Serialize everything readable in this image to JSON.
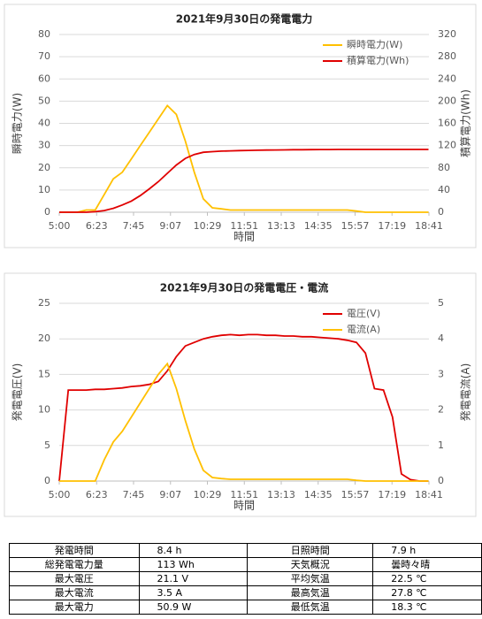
{
  "chart_data": [
    {
      "type": "line",
      "title": "2021年9月30日の発電電力",
      "xlabel": "時間",
      "ylabel": "瞬時電力(W)",
      "y2label": "積算電力(Wh)",
      "x": [
        "5:00",
        "5:20",
        "5:40",
        "6:00",
        "6:20",
        "6:40",
        "7:00",
        "7:20",
        "7:40",
        "8:00",
        "8:20",
        "8:40",
        "9:00",
        "9:20",
        "9:40",
        "10:00",
        "10:20",
        "10:40",
        "11:00",
        "11:20",
        "11:40",
        "12:00",
        "12:20",
        "12:40",
        "13:00",
        "13:20",
        "13:40",
        "14:00",
        "14:20",
        "14:40",
        "15:00",
        "15:20",
        "15:40",
        "16:00",
        "16:20",
        "16:40",
        "17:00",
        "17:20",
        "17:40",
        "18:00",
        "18:20",
        "18:40"
      ],
      "xlim": [
        "5:00",
        "18:41"
      ],
      "xticks": [
        "5:00",
        "6:23",
        "7:45",
        "9:07",
        "10:29",
        "11:51",
        "13:13",
        "14:35",
        "15:57",
        "17:19",
        "18:41"
      ],
      "ylim": [
        0,
        80
      ],
      "yticks": [
        0,
        10,
        20,
        30,
        40,
        50,
        60,
        70,
        80
      ],
      "y2lim": [
        0,
        320
      ],
      "y2ticks": [
        0,
        40,
        80,
        120,
        160,
        200,
        240,
        280,
        320
      ],
      "grid": true,
      "legend": "upper right",
      "series": [
        {
          "name": "瞬時電力(W)",
          "color": "#ffc000",
          "values": [
            0,
            0,
            0,
            1,
            1,
            8,
            15,
            18,
            24,
            30,
            36,
            42,
            48,
            44,
            32,
            18,
            6,
            2,
            1.5,
            1,
            1,
            1,
            1,
            1,
            1,
            1,
            1,
            1,
            1,
            1,
            1,
            1,
            1,
            0.5,
            0,
            0,
            0,
            0,
            0,
            0,
            0,
            0
          ]
        },
        {
          "name": "積算電力(Wh)",
          "color": "#e00000",
          "axis": "y2",
          "values": [
            0,
            0,
            0,
            0,
            1,
            3,
            7,
            13,
            20,
            30,
            42,
            55,
            70,
            85,
            97,
            104,
            108,
            109,
            110,
            110.5,
            111,
            111.3,
            111.6,
            111.9,
            112.1,
            112.3,
            112.5,
            112.6,
            112.7,
            112.8,
            112.9,
            113,
            113,
            113,
            113,
            113,
            113,
            113,
            113,
            113,
            113,
            113
          ]
        }
      ]
    },
    {
      "type": "line",
      "title": "2021年9月30日の発電電圧・電流",
      "xlabel": "時間",
      "ylabel": "発電電圧(V)",
      "y2label": "発電電流(A)",
      "x": [
        "5:00",
        "5:20",
        "5:40",
        "6:00",
        "6:20",
        "6:40",
        "7:00",
        "7:20",
        "7:40",
        "8:00",
        "8:20",
        "8:40",
        "9:00",
        "9:20",
        "9:40",
        "10:00",
        "10:20",
        "10:40",
        "11:00",
        "11:20",
        "11:40",
        "12:00",
        "12:20",
        "12:40",
        "13:00",
        "13:20",
        "13:40",
        "14:00",
        "14:20",
        "14:40",
        "15:00",
        "15:20",
        "15:40",
        "16:00",
        "16:20",
        "16:40",
        "17:00",
        "17:20",
        "17:40",
        "18:00",
        "18:20",
        "18:40"
      ],
      "xlim": [
        "5:00",
        "18:41"
      ],
      "xticks": [
        "5:00",
        "6:23",
        "7:45",
        "9:07",
        "10:29",
        "11:51",
        "13:13",
        "14:35",
        "15:57",
        "17:19",
        "18:41"
      ],
      "ylim": [
        0,
        25
      ],
      "yticks": [
        0,
        5,
        10,
        15,
        20,
        25
      ],
      "y2lim": [
        0,
        5
      ],
      "y2ticks": [
        0,
        1,
        2,
        3,
        4,
        5
      ],
      "grid": true,
      "legend": "upper right",
      "series": [
        {
          "name": "電圧(V)",
          "color": "#e00000",
          "values": [
            0,
            12.8,
            12.8,
            12.8,
            12.9,
            12.9,
            13,
            13.1,
            13.3,
            13.4,
            13.6,
            14,
            15.5,
            17.5,
            19,
            19.5,
            20,
            20.3,
            20.5,
            20.6,
            20.5,
            20.6,
            20.6,
            20.5,
            20.5,
            20.4,
            20.4,
            20.3,
            20.3,
            20.2,
            20.1,
            20,
            19.8,
            19.5,
            18,
            13,
            12.8,
            9,
            1,
            0.2,
            0,
            0
          ]
        },
        {
          "name": "電流(A)",
          "color": "#ffc000",
          "axis": "y2",
          "values": [
            0,
            0,
            0,
            0,
            0,
            0.6,
            1.1,
            1.4,
            1.8,
            2.2,
            2.6,
            3,
            3.3,
            2.6,
            1.7,
            0.9,
            0.3,
            0.1,
            0.07,
            0.05,
            0.05,
            0.05,
            0.05,
            0.05,
            0.05,
            0.05,
            0.05,
            0.05,
            0.05,
            0.05,
            0.05,
            0.05,
            0.05,
            0.02,
            0,
            0,
            0,
            0,
            0,
            0,
            0,
            0
          ]
        }
      ]
    }
  ],
  "table": {
    "rows": [
      [
        "発電時間",
        "8.4 h",
        "日照時間",
        "7.9 h"
      ],
      [
        "総発電電力量",
        "113 Wh",
        "天気概況",
        "曇時々晴"
      ],
      [
        "最大電圧",
        "21.1 V",
        "平均気温",
        "22.5 ℃"
      ],
      [
        "最大電流",
        "3.5 A",
        "最高気温",
        "27.8 ℃"
      ],
      [
        "最大電力",
        "50.9 W",
        "最低気温",
        "18.3 ℃"
      ]
    ]
  }
}
